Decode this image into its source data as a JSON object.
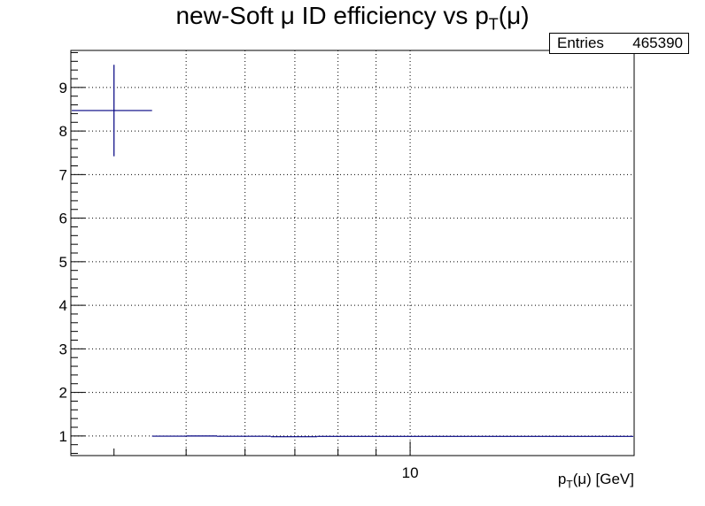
{
  "chart_data": {
    "type": "scatter",
    "title_main": "new-Soft μ ID efficiency vs p",
    "title_sub": "T",
    "title_tail": "(μ)",
    "xlabel_main": "p",
    "xlabel_sub": "T",
    "xlabel_tail": "(μ) [GeV]",
    "ylabel": "",
    "x_scale": "log",
    "xlim": [
      3.5,
      20
    ],
    "ylim": [
      0.55,
      9.85
    ],
    "grid": true,
    "yticks": [
      1,
      2,
      3,
      4,
      5,
      6,
      7,
      8,
      9
    ],
    "xtick_labels": [
      {
        "value": 10,
        "label": "10"
      }
    ],
    "xgrid": [
      5,
      6,
      7,
      8,
      9,
      10,
      20
    ],
    "stats": {
      "label": "Entries",
      "value": "465390"
    },
    "points": [
      {
        "x": 4.0,
        "y": 8.47,
        "xerr_low": 0.5,
        "xerr_high": 0.5,
        "yerr": 1.05
      },
      {
        "x": 4.75,
        "y": 0.995,
        "xerr_low": 0.25,
        "xerr_high": 0.25,
        "yerr": 0.004
      },
      {
        "x": 5.25,
        "y": 1.0,
        "xerr_low": 0.25,
        "xerr_high": 0.25,
        "yerr": 0.004
      },
      {
        "x": 5.75,
        "y": 0.993,
        "xerr_low": 0.25,
        "xerr_high": 0.25,
        "yerr": 0.004
      },
      {
        "x": 6.25,
        "y": 0.993,
        "xerr_low": 0.25,
        "xerr_high": 0.25,
        "yerr": 0.004
      },
      {
        "x": 6.75,
        "y": 0.983,
        "xerr_low": 0.25,
        "xerr_high": 0.25,
        "yerr": 0.004
      },
      {
        "x": 7.25,
        "y": 0.983,
        "xerr_low": 0.25,
        "xerr_high": 0.25,
        "yerr": 0.004
      },
      {
        "x": 7.75,
        "y": 0.99,
        "xerr_low": 0.25,
        "xerr_high": 0.25,
        "yerr": 0.004
      },
      {
        "x": 8.5,
        "y": 0.99,
        "xerr_low": 0.5,
        "xerr_high": 0.5,
        "yerr": 0.004
      },
      {
        "x": 9.5,
        "y": 0.99,
        "xerr_low": 0.5,
        "xerr_high": 0.5,
        "yerr": 0.004
      },
      {
        "x": 11.0,
        "y": 0.99,
        "xerr_low": 1.0,
        "xerr_high": 1.0,
        "yerr": 0.004
      },
      {
        "x": 13.5,
        "y": 0.99,
        "xerr_low": 1.5,
        "xerr_high": 1.5,
        "yerr": 0.004
      },
      {
        "x": 17.5,
        "y": 0.99,
        "xerr_low": 2.5,
        "xerr_high": 2.5,
        "yerr": 0.004
      }
    ],
    "marker_color": "#000080"
  }
}
